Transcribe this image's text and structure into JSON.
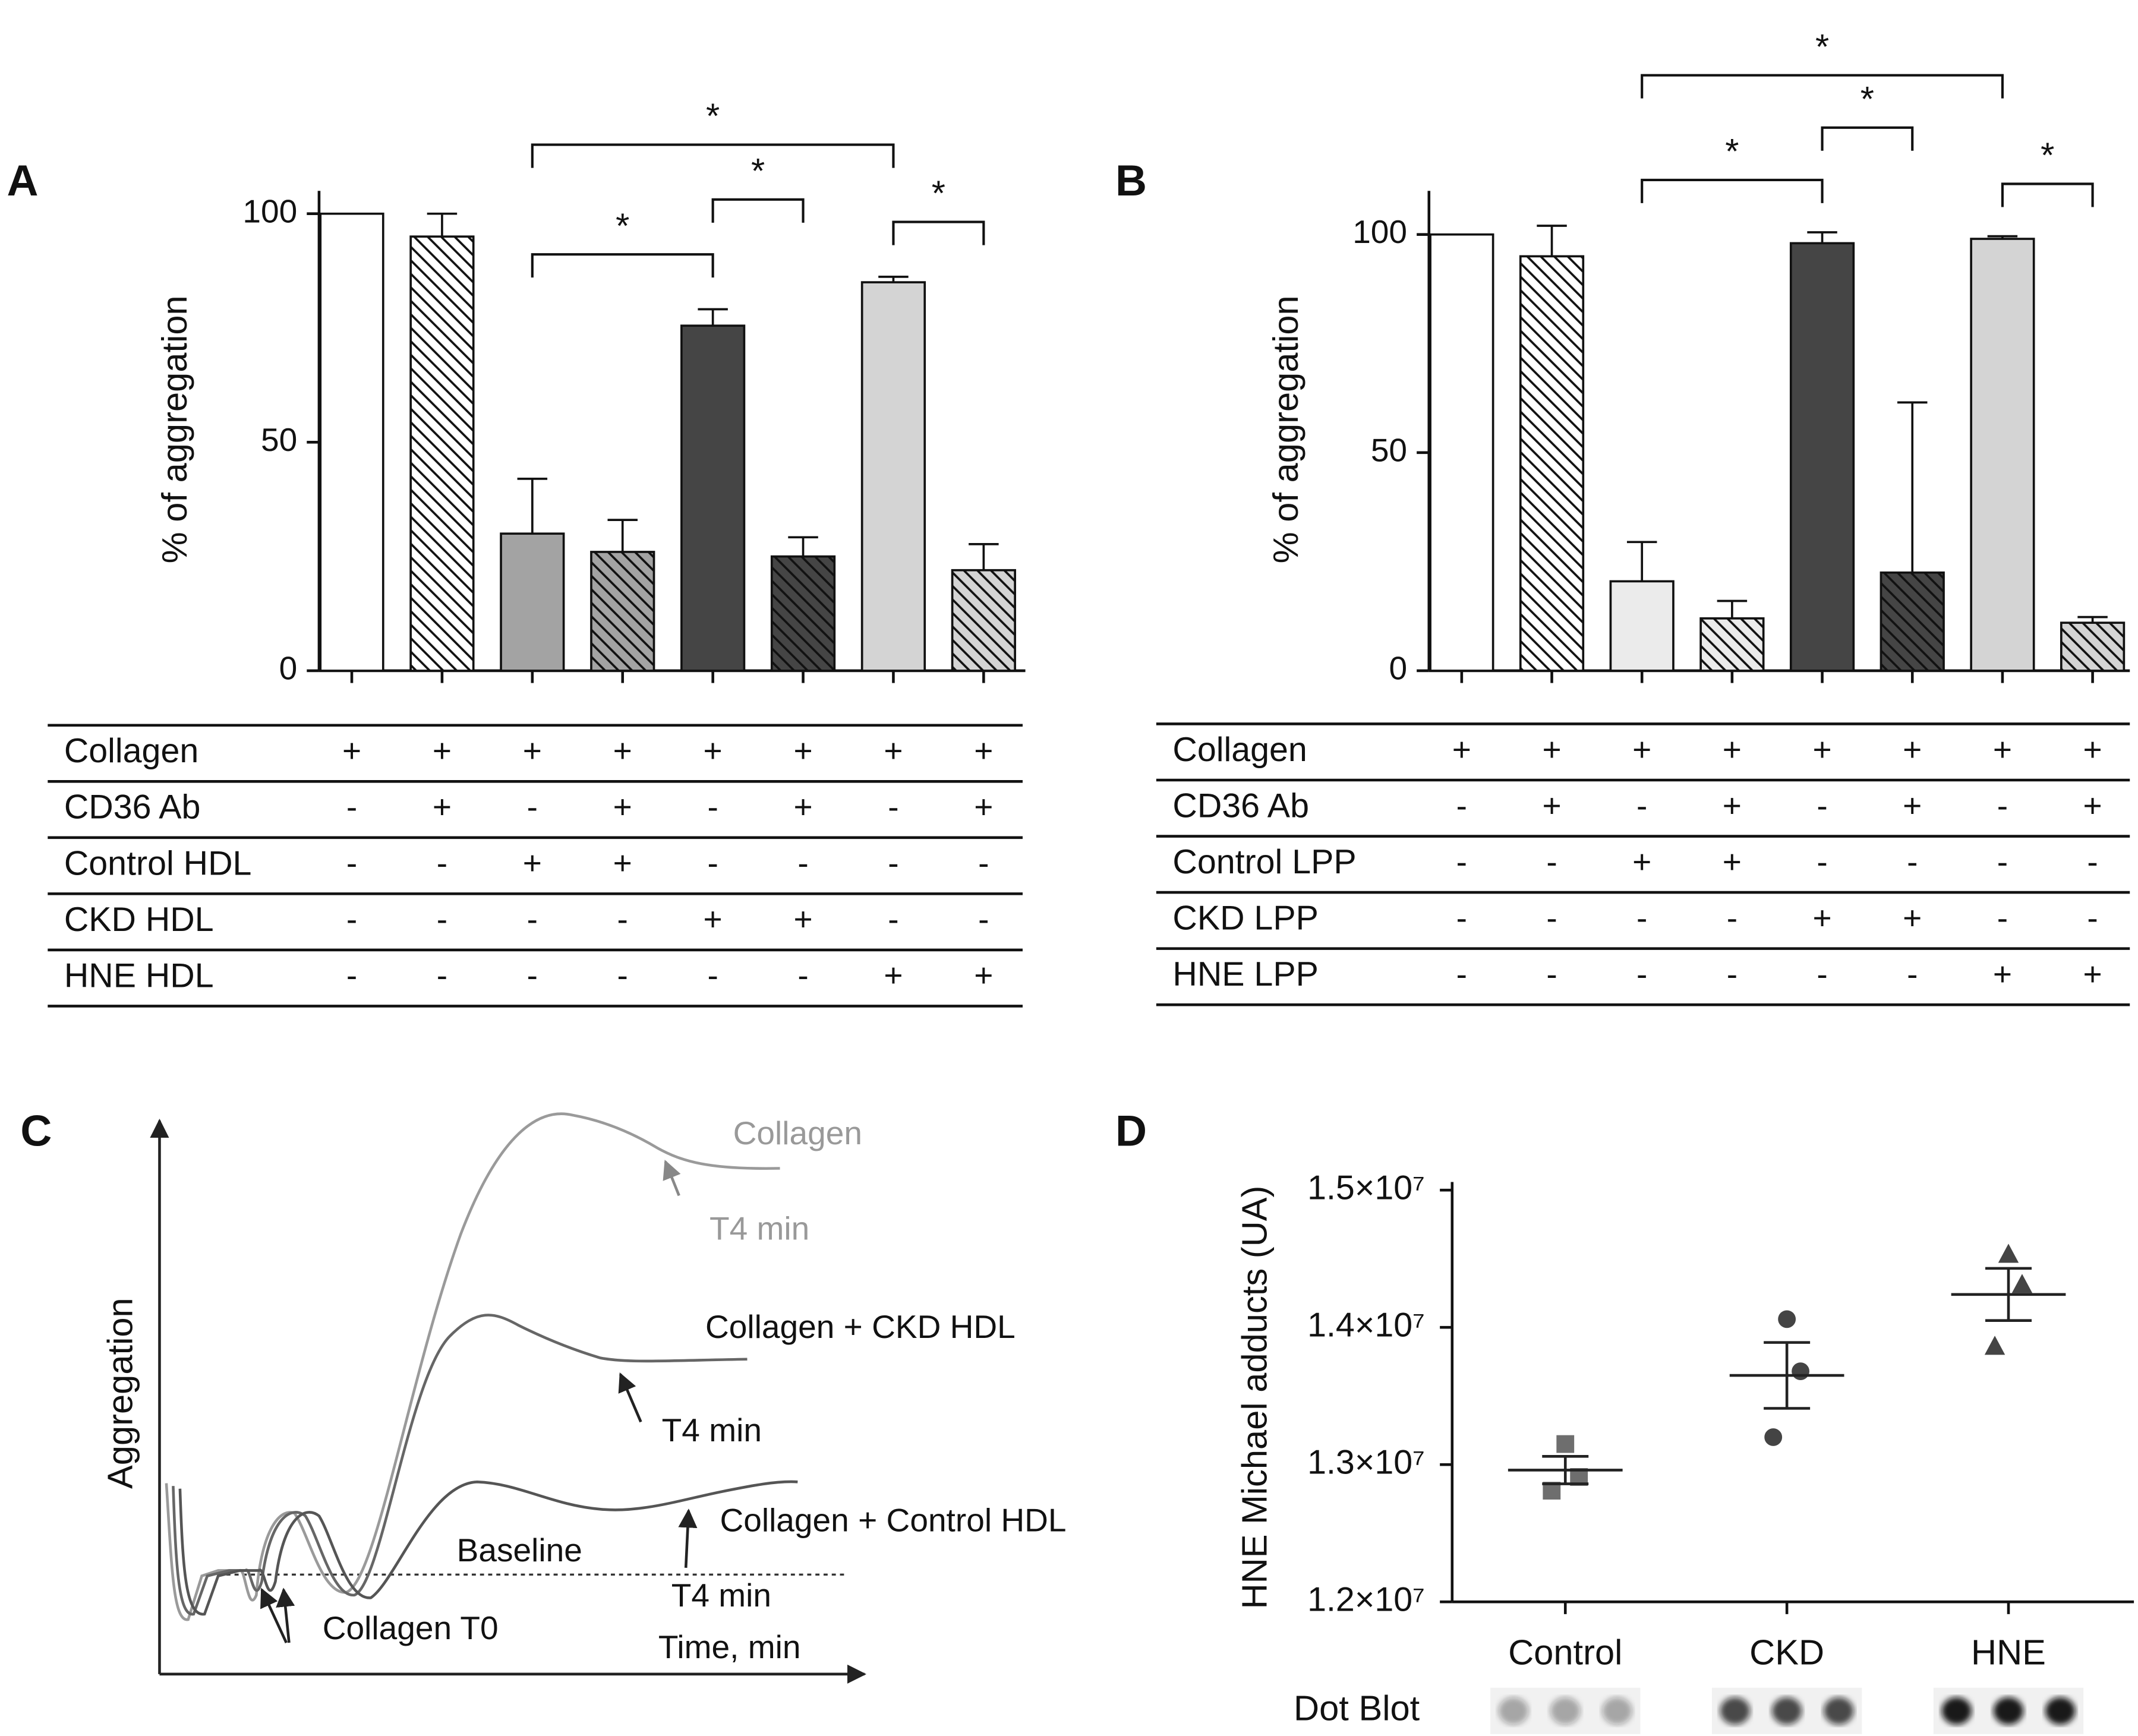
{
  "chart_data": [
    {
      "panel_label": "A",
      "type": "bar",
      "ylabel": "% of aggregation",
      "categories": [
        null,
        null,
        null,
        null,
        null,
        null,
        null,
        null
      ],
      "values": [
        100,
        95,
        30,
        26,
        75.5,
        25,
        85,
        22
      ],
      "errors": [
        null,
        5,
        12,
        7,
        3.6,
        4.2,
        1.2,
        5.7
      ],
      "colors": [
        "#ffffff",
        "#ffffff",
        "#a3a3a3",
        "#a3a3a3",
        "#454545",
        "#454545",
        "#d4d4d4",
        "#d4d4d4"
      ],
      "hatched": [
        false,
        true,
        false,
        true,
        false,
        true,
        false,
        true
      ],
      "ylim": [
        0,
        105
      ],
      "yticks": [
        0,
        50,
        100
      ],
      "significance": [
        {
          "from": 2,
          "to": 4,
          "label": "*"
        },
        {
          "from": 4,
          "to": 5,
          "label": "*"
        },
        {
          "from": 6,
          "to": 7,
          "label": "*"
        },
        {
          "from": 2,
          "to": 6,
          "label": "*"
        }
      ],
      "conditions": [
        {
          "label": "Collagen",
          "values": [
            "+",
            "+",
            "+",
            "+",
            "+",
            "+",
            "+",
            "+"
          ]
        },
        {
          "label": "CD36 Ab",
          "values": [
            "-",
            "+",
            "-",
            "+",
            "-",
            "+",
            "-",
            "+"
          ]
        },
        {
          "label": "Control HDL",
          "values": [
            "-",
            "-",
            "+",
            "+",
            "-",
            "-",
            "-",
            "-"
          ]
        },
        {
          "label": "CKD HDL",
          "values": [
            "-",
            "-",
            "-",
            "-",
            "+",
            "+",
            "-",
            "-"
          ]
        },
        {
          "label": "HNE HDL",
          "values": [
            "-",
            "-",
            "-",
            "-",
            "-",
            "-",
            "+",
            "+"
          ]
        }
      ]
    },
    {
      "panel_label": "B",
      "type": "bar",
      "ylabel": "% of aggregation",
      "categories": [
        null,
        null,
        null,
        null,
        null,
        null,
        null,
        null
      ],
      "values": [
        100,
        95,
        20.5,
        12,
        98,
        22.5,
        99,
        11
      ],
      "errors": [
        null,
        7,
        9,
        4,
        2.5,
        39,
        0.6,
        1.3
      ],
      "colors": [
        "#ffffff",
        "#ffffff",
        "#ebebeb",
        "#ebebeb",
        "#454545",
        "#454545",
        "#d4d4d4",
        "#d4d4d4"
      ],
      "hatched": [
        false,
        true,
        false,
        true,
        false,
        true,
        false,
        true
      ],
      "ylim": [
        0,
        110
      ],
      "yticks": [
        0,
        50,
        100
      ],
      "significance": [
        {
          "from": 2,
          "to": 4,
          "label": "*"
        },
        {
          "from": 4,
          "to": 5,
          "label": "*"
        },
        {
          "from": 6,
          "to": 7,
          "label": "*"
        },
        {
          "from": 2,
          "to": 6,
          "label": "*"
        }
      ],
      "conditions": [
        {
          "label": "Collagen",
          "values": [
            "+",
            "+",
            "+",
            "+",
            "+",
            "+",
            "+",
            "+"
          ]
        },
        {
          "label": "CD36 Ab",
          "values": [
            "-",
            "+",
            "-",
            "+",
            "-",
            "+",
            "-",
            "+"
          ]
        },
        {
          "label": "Control LPP",
          "values": [
            "-",
            "-",
            "+",
            "+",
            "-",
            "-",
            "-",
            "-"
          ]
        },
        {
          "label": "CKD LPP",
          "values": [
            "-",
            "-",
            "-",
            "-",
            "+",
            "+",
            "-",
            "-"
          ]
        },
        {
          "label": "HNE LPP",
          "values": [
            "-",
            "-",
            "-",
            "-",
            "-",
            "-",
            "+",
            "+"
          ]
        }
      ]
    },
    {
      "panel_label": "C",
      "type": "schematic",
      "ylabel": "Aggregation",
      "xlabel": "Time, min",
      "annotations": [
        "Collagen",
        "T4 min",
        "Collagen + CKD HDL",
        "T4 min",
        "Collagen + Control HDL",
        "Baseline",
        "T4 min",
        "Collagen T0"
      ]
    },
    {
      "panel_label": "D",
      "type": "scatter",
      "ylabel": "HNE Michael adducts (UA)",
      "categories": [
        "Control",
        "CKD",
        "HNE"
      ],
      "values": [
        [
          13150000,
          12910000,
          12810000
        ],
        [
          14060000,
          13680000,
          13200000
        ],
        [
          14530000,
          14310000,
          13860000
        ]
      ],
      "means": [
        12960000,
        13650000,
        14240000
      ],
      "sem": [
        100000,
        240000,
        190000
      ],
      "markers": [
        "square",
        "circle",
        "triangle"
      ],
      "colors": [
        "#6e6e6e",
        "#444444",
        "#444444"
      ],
      "ylim": [
        12000000,
        15000000
      ],
      "yticks": [
        {
          "value": 12000000,
          "label": "1.2×10⁷"
        },
        {
          "value": 13000000,
          "label": "1.3×10⁷"
        },
        {
          "value": 14000000,
          "label": "1.4×10⁷"
        },
        {
          "value": 15000000,
          "label": "1.5×10⁷"
        }
      ],
      "dot_blot_label": "Dot Blot"
    }
  ]
}
